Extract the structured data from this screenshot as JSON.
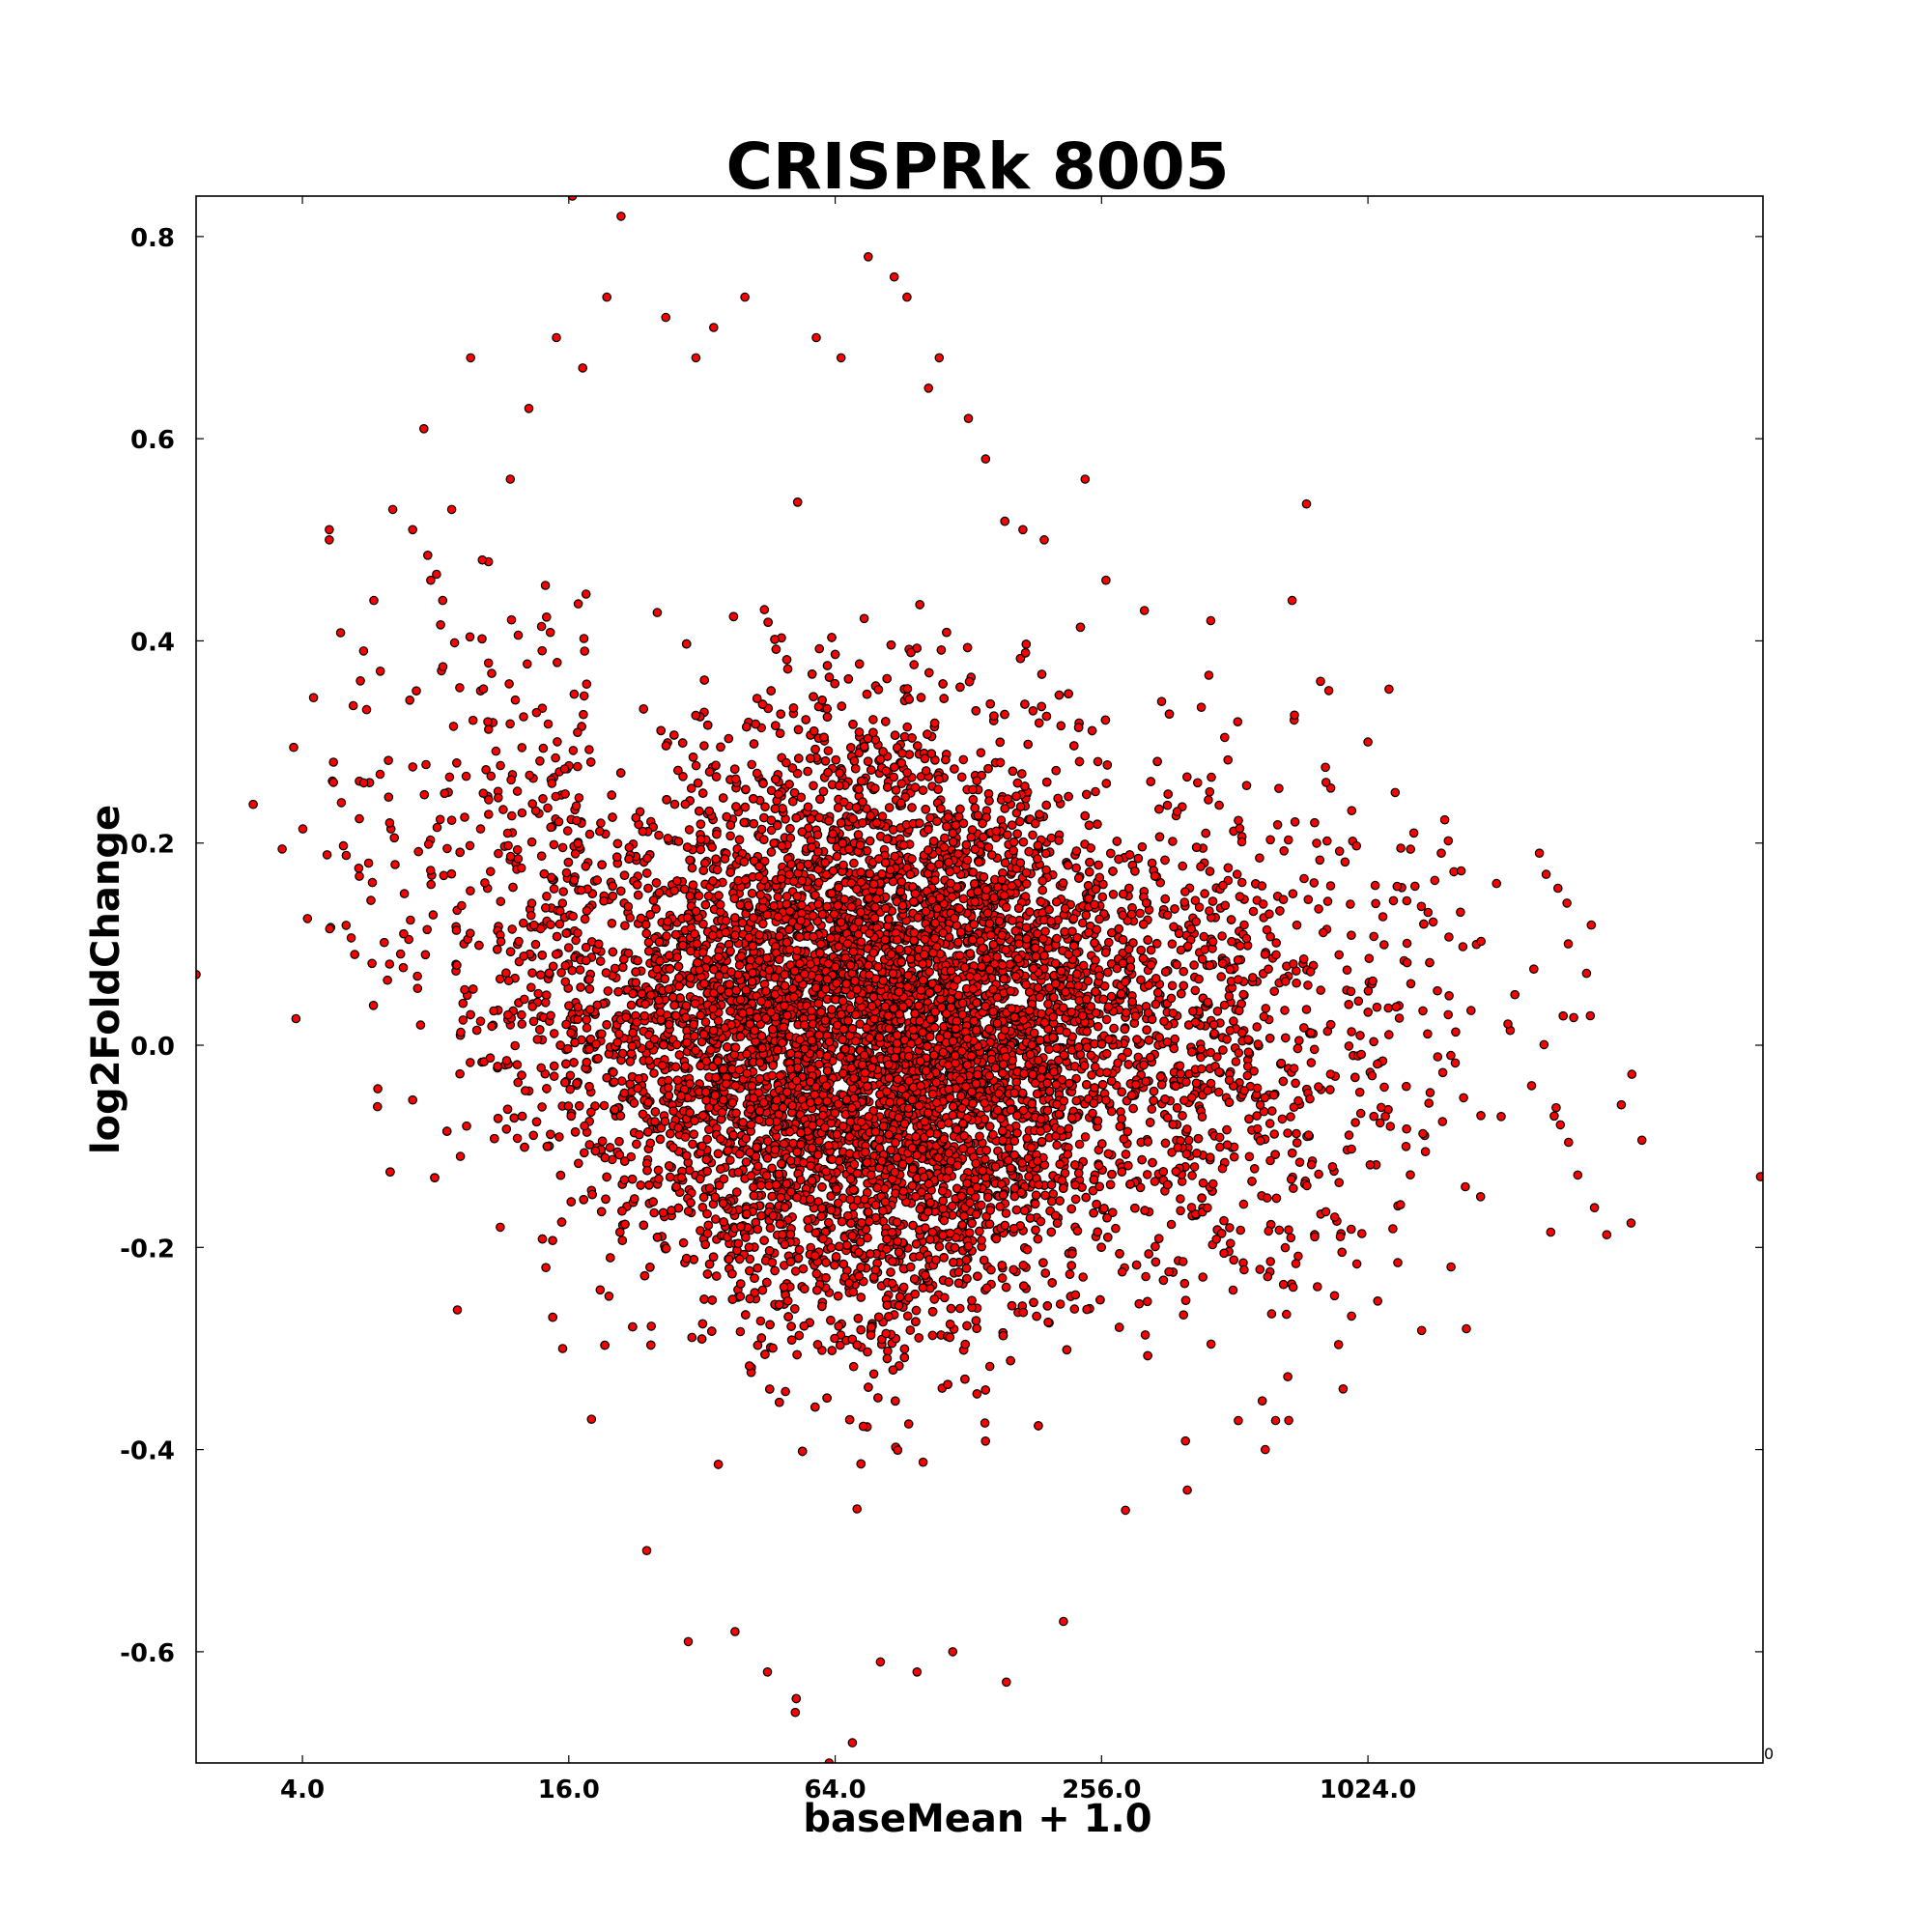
{
  "chart_data": {
    "type": "scatter",
    "title": "CRISPRk 8005",
    "xlabel": "baseMean + 1.0",
    "ylabel": "log2FoldChange",
    "x_scale": "log2",
    "xlim": [
      2.3,
      8000
    ],
    "ylim": [
      -0.71,
      0.84
    ],
    "x_ticks": [
      4,
      16,
      64,
      256,
      1024
    ],
    "x_tick_labels": [
      "4.0",
      "16.0",
      "64.0",
      "256.0",
      "1024.0"
    ],
    "y_ticks": [
      -0.6,
      -0.4,
      -0.2,
      0.0,
      0.2,
      0.4,
      0.6,
      0.8
    ],
    "y_tick_labels": [
      "-0.6",
      "-0.4",
      "-0.2",
      "0.0",
      "0.2",
      "0.4",
      "0.6",
      "0.8"
    ],
    "corner_label": "0",
    "grid": false,
    "marker_color": "#ff0000",
    "marker_edge_color": "#000000",
    "series": [
      {
        "x": [
          4.6,
          4.6,
          4.7,
          4.7,
          4.9,
          5.5,
          5.8,
          6.0,
          6.3,
          6.4,
          6.8,
          7.1,
          7.4,
          7.8,
          8.3,
          8.7,
          9.4,
          9.6,
          10.2,
          10.5,
          11.2,
          11.8,
          13.0,
          14.2,
          15.0,
          15.5,
          16.3,
          17.2,
          18.0,
          19.5,
          21.0,
          24.0,
          26.5,
          29.8,
          31.0,
          34.0,
          38.0,
          40.0,
          45.0,
          52.0,
          58.0,
          62.0,
          66.0,
          70.0,
          76.0,
          81.0,
          87.0,
          93.0,
          98.0,
          104.0,
          110.0,
          118.0,
          128.0,
          140.0,
          156.0,
          170.0,
          190.0,
          210.0,
          235.0,
          262.0,
          290.0,
          320.0,
          350.0,
          400.0,
          452.0,
          520.0,
          600.0,
          690.0,
          800.0,
          900.0,
          1024.0,
          1180.0,
          1300.0,
          1500.0,
          1700.0,
          2000.0,
          2200.0,
          2400.0,
          2500.0,
          2700.0,
          7900.0,
          2.3
        ],
        "y": [
          0.5,
          0.51,
          0.28,
          0.26,
          0.24,
          0.39,
          0.44,
          0.37,
          0.22,
          0.53,
          0.15,
          0.51,
          0.02,
          0.46,
          0.44,
          0.53,
          -0.08,
          0.68,
          0.48,
          0.32,
          -0.18,
          0.56,
          0.63,
          -0.22,
          0.7,
          -0.3,
          0.84,
          0.67,
          -0.37,
          0.74,
          0.82,
          -0.5,
          0.72,
          -0.59,
          0.68,
          0.71,
          -0.58,
          0.74,
          -0.62,
          -0.66,
          0.7,
          -0.71,
          0.68,
          -0.69,
          0.78,
          -0.61,
          0.76,
          0.74,
          -0.62,
          0.65,
          0.68,
          -0.6,
          0.62,
          0.58,
          -0.63,
          0.51,
          0.5,
          -0.57,
          0.56,
          0.46,
          -0.46,
          0.43,
          0.34,
          -0.44,
          0.42,
          0.32,
          -0.4,
          0.44,
          0.36,
          -0.34,
          0.3,
          0.25,
          0.21,
          0.19,
          -0.14,
          0.16,
          0.05,
          -0.04,
          0.19,
          -0.07,
          -0.13,
          0.07
        ],
        "dense_core": {
          "x_range": [
            18,
            360
          ],
          "y_range": [
            -0.33,
            0.36
          ],
          "note": "thousands of overlapping points"
        }
      }
    ]
  }
}
